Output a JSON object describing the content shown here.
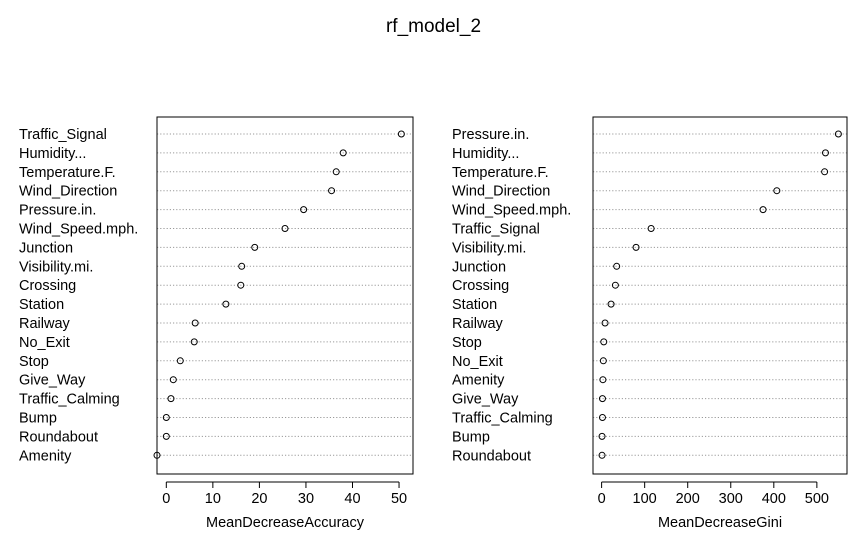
{
  "title": "rf_model_2",
  "chart_data": [
    {
      "type": "scatter",
      "xlabel": "MeanDecreaseAccuracy",
      "ylabel": "",
      "xlim": [
        -2,
        53
      ],
      "xticks": [
        0,
        10,
        20,
        30,
        40,
        50
      ],
      "grid": "horizontal dotted",
      "categories": [
        "Traffic_Signal",
        "Humidity...",
        "Temperature.F.",
        "Wind_Direction",
        "Pressure.in.",
        "Wind_Speed.mph.",
        "Junction",
        "Visibility.mi.",
        "Crossing",
        "Station",
        "Railway",
        "No_Exit",
        "Stop",
        "Give_Way",
        "Traffic_Calming",
        "Bump",
        "Roundabout",
        "Amenity"
      ],
      "values": [
        50.5,
        38,
        36.5,
        35.5,
        29.5,
        25.5,
        19,
        16.2,
        16,
        12.8,
        6.2,
        6,
        3,
        1.5,
        1,
        0,
        0,
        -2
      ]
    },
    {
      "type": "scatter",
      "xlabel": "MeanDecreaseGini",
      "ylabel": "",
      "xlim": [
        -20,
        570
      ],
      "xticks": [
        0,
        100,
        200,
        300,
        400,
        500
      ],
      "grid": "horizontal dotted",
      "categories": [
        "Pressure.in.",
        "Humidity...",
        "Temperature.F.",
        "Wind_Direction",
        "Wind_Speed.mph.",
        "Traffic_Signal",
        "Visibility.mi.",
        "Junction",
        "Crossing",
        "Station",
        "Railway",
        "Stop",
        "No_Exit",
        "Amenity",
        "Give_Way",
        "Traffic_Calming",
        "Bump",
        "Roundabout"
      ],
      "values": [
        550,
        520,
        518,
        407,
        375,
        115,
        80,
        35,
        32,
        22,
        8,
        5,
        4,
        3,
        2,
        2,
        1,
        1
      ]
    }
  ]
}
